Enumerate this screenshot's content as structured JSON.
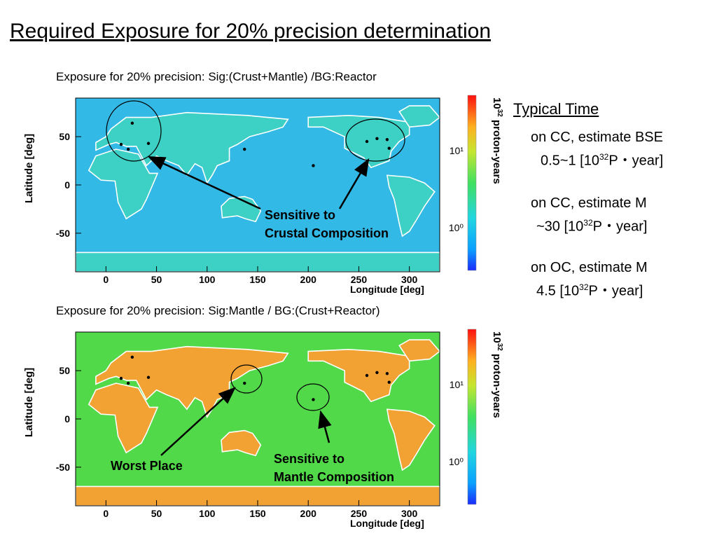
{
  "slide": {
    "title": "Required Exposure for 20% precision determination"
  },
  "typical": {
    "heading": "Typical Time",
    "items": [
      {
        "line1": "on CC, estimate BSE",
        "pre": "0.5~1 [10",
        "sup": "32",
        "post": "P・year]"
      },
      {
        "line1": "on CC, estimate M",
        "pre": "~30 [10",
        "sup": "32",
        "post": "P・year]"
      },
      {
        "line1": "on OC, estimate M",
        "pre": "4.5 [10",
        "sup": "32",
        "post": "P・year]"
      }
    ]
  },
  "chart_data": [
    {
      "type": "heatmap",
      "title": "Exposure for 20% precision: Sig:(Crust+Mantle) /BG:Reactor",
      "xlabel": "Longitude [deg]",
      "ylabel": "Latitude [deg]",
      "xlim": [
        -30,
        330
      ],
      "ylim": [
        -90,
        90
      ],
      "xticks": [
        0,
        50,
        100,
        150,
        200,
        250,
        300
      ],
      "yticks": [
        -50,
        0,
        50
      ],
      "colorbar": {
        "label": "10",
        "label_sup": "32",
        "label_rest": " proton-years",
        "scale": "log",
        "ticks": [
          "10⁰",
          "10¹"
        ]
      },
      "background_color": "#33b9e6",
      "land_color": "#3dd0c4",
      "markers": [
        {
          "lon": 26,
          "lat": 64
        },
        {
          "lon": 15,
          "lat": 42
        },
        {
          "lon": 22,
          "lat": 37
        },
        {
          "lon": 42,
          "lat": 43
        },
        {
          "lon": 137,
          "lat": 37
        },
        {
          "lon": 205,
          "lat": 20
        },
        {
          "lon": 258,
          "lat": 45
        },
        {
          "lon": 268,
          "lat": 48
        },
        {
          "lon": 278,
          "lat": 47
        },
        {
          "lon": 280,
          "lat": 38
        }
      ],
      "annotations": [
        {
          "line1": "Sensitive to",
          "line2": "Crustal Composition"
        }
      ]
    },
    {
      "type": "heatmap",
      "title": "Exposure for 20% precision: Sig:Mantle / BG:(Crust+Reactor)",
      "xlabel": "Longitude [deg]",
      "ylabel": "Latitude [deg]",
      "xlim": [
        -30,
        330
      ],
      "ylim": [
        -90,
        90
      ],
      "xticks": [
        0,
        50,
        100,
        150,
        200,
        250,
        300
      ],
      "yticks": [
        -50,
        0,
        50
      ],
      "colorbar": {
        "label": "10",
        "label_sup": "32",
        "label_rest": " proton-years",
        "scale": "log",
        "ticks": [
          "10⁰",
          "10¹"
        ]
      },
      "background_color": "#52d94a",
      "land_color": "#f2a232",
      "markers": [
        {
          "lon": 26,
          "lat": 64
        },
        {
          "lon": 15,
          "lat": 42
        },
        {
          "lon": 22,
          "lat": 37
        },
        {
          "lon": 42,
          "lat": 43
        },
        {
          "lon": 137,
          "lat": 37
        },
        {
          "lon": 205,
          "lat": 20
        },
        {
          "lon": 258,
          "lat": 45
        },
        {
          "lon": 268,
          "lat": 48
        },
        {
          "lon": 278,
          "lat": 47
        },
        {
          "lon": 280,
          "lat": 38
        }
      ],
      "annotations": [
        {
          "line1": "Worst Place",
          "line2": ""
        },
        {
          "line1": "Sensitive to",
          "line2": "Mantle Composition"
        }
      ]
    }
  ]
}
